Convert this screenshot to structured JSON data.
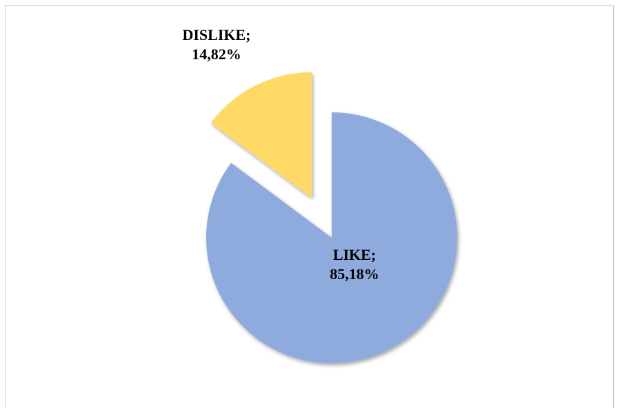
{
  "chart_data": {
    "type": "pie",
    "title": "",
    "slices": [
      {
        "label": "LIKE",
        "value": 85.18,
        "display": "85,18%",
        "color": "#8faadc",
        "exploded": false
      },
      {
        "label": "DISLIKE",
        "value": 14.82,
        "display": "14,82%",
        "color": "#ffd966",
        "exploded": true
      }
    ],
    "legend": "none",
    "data_labels": "category-and-percent"
  }
}
